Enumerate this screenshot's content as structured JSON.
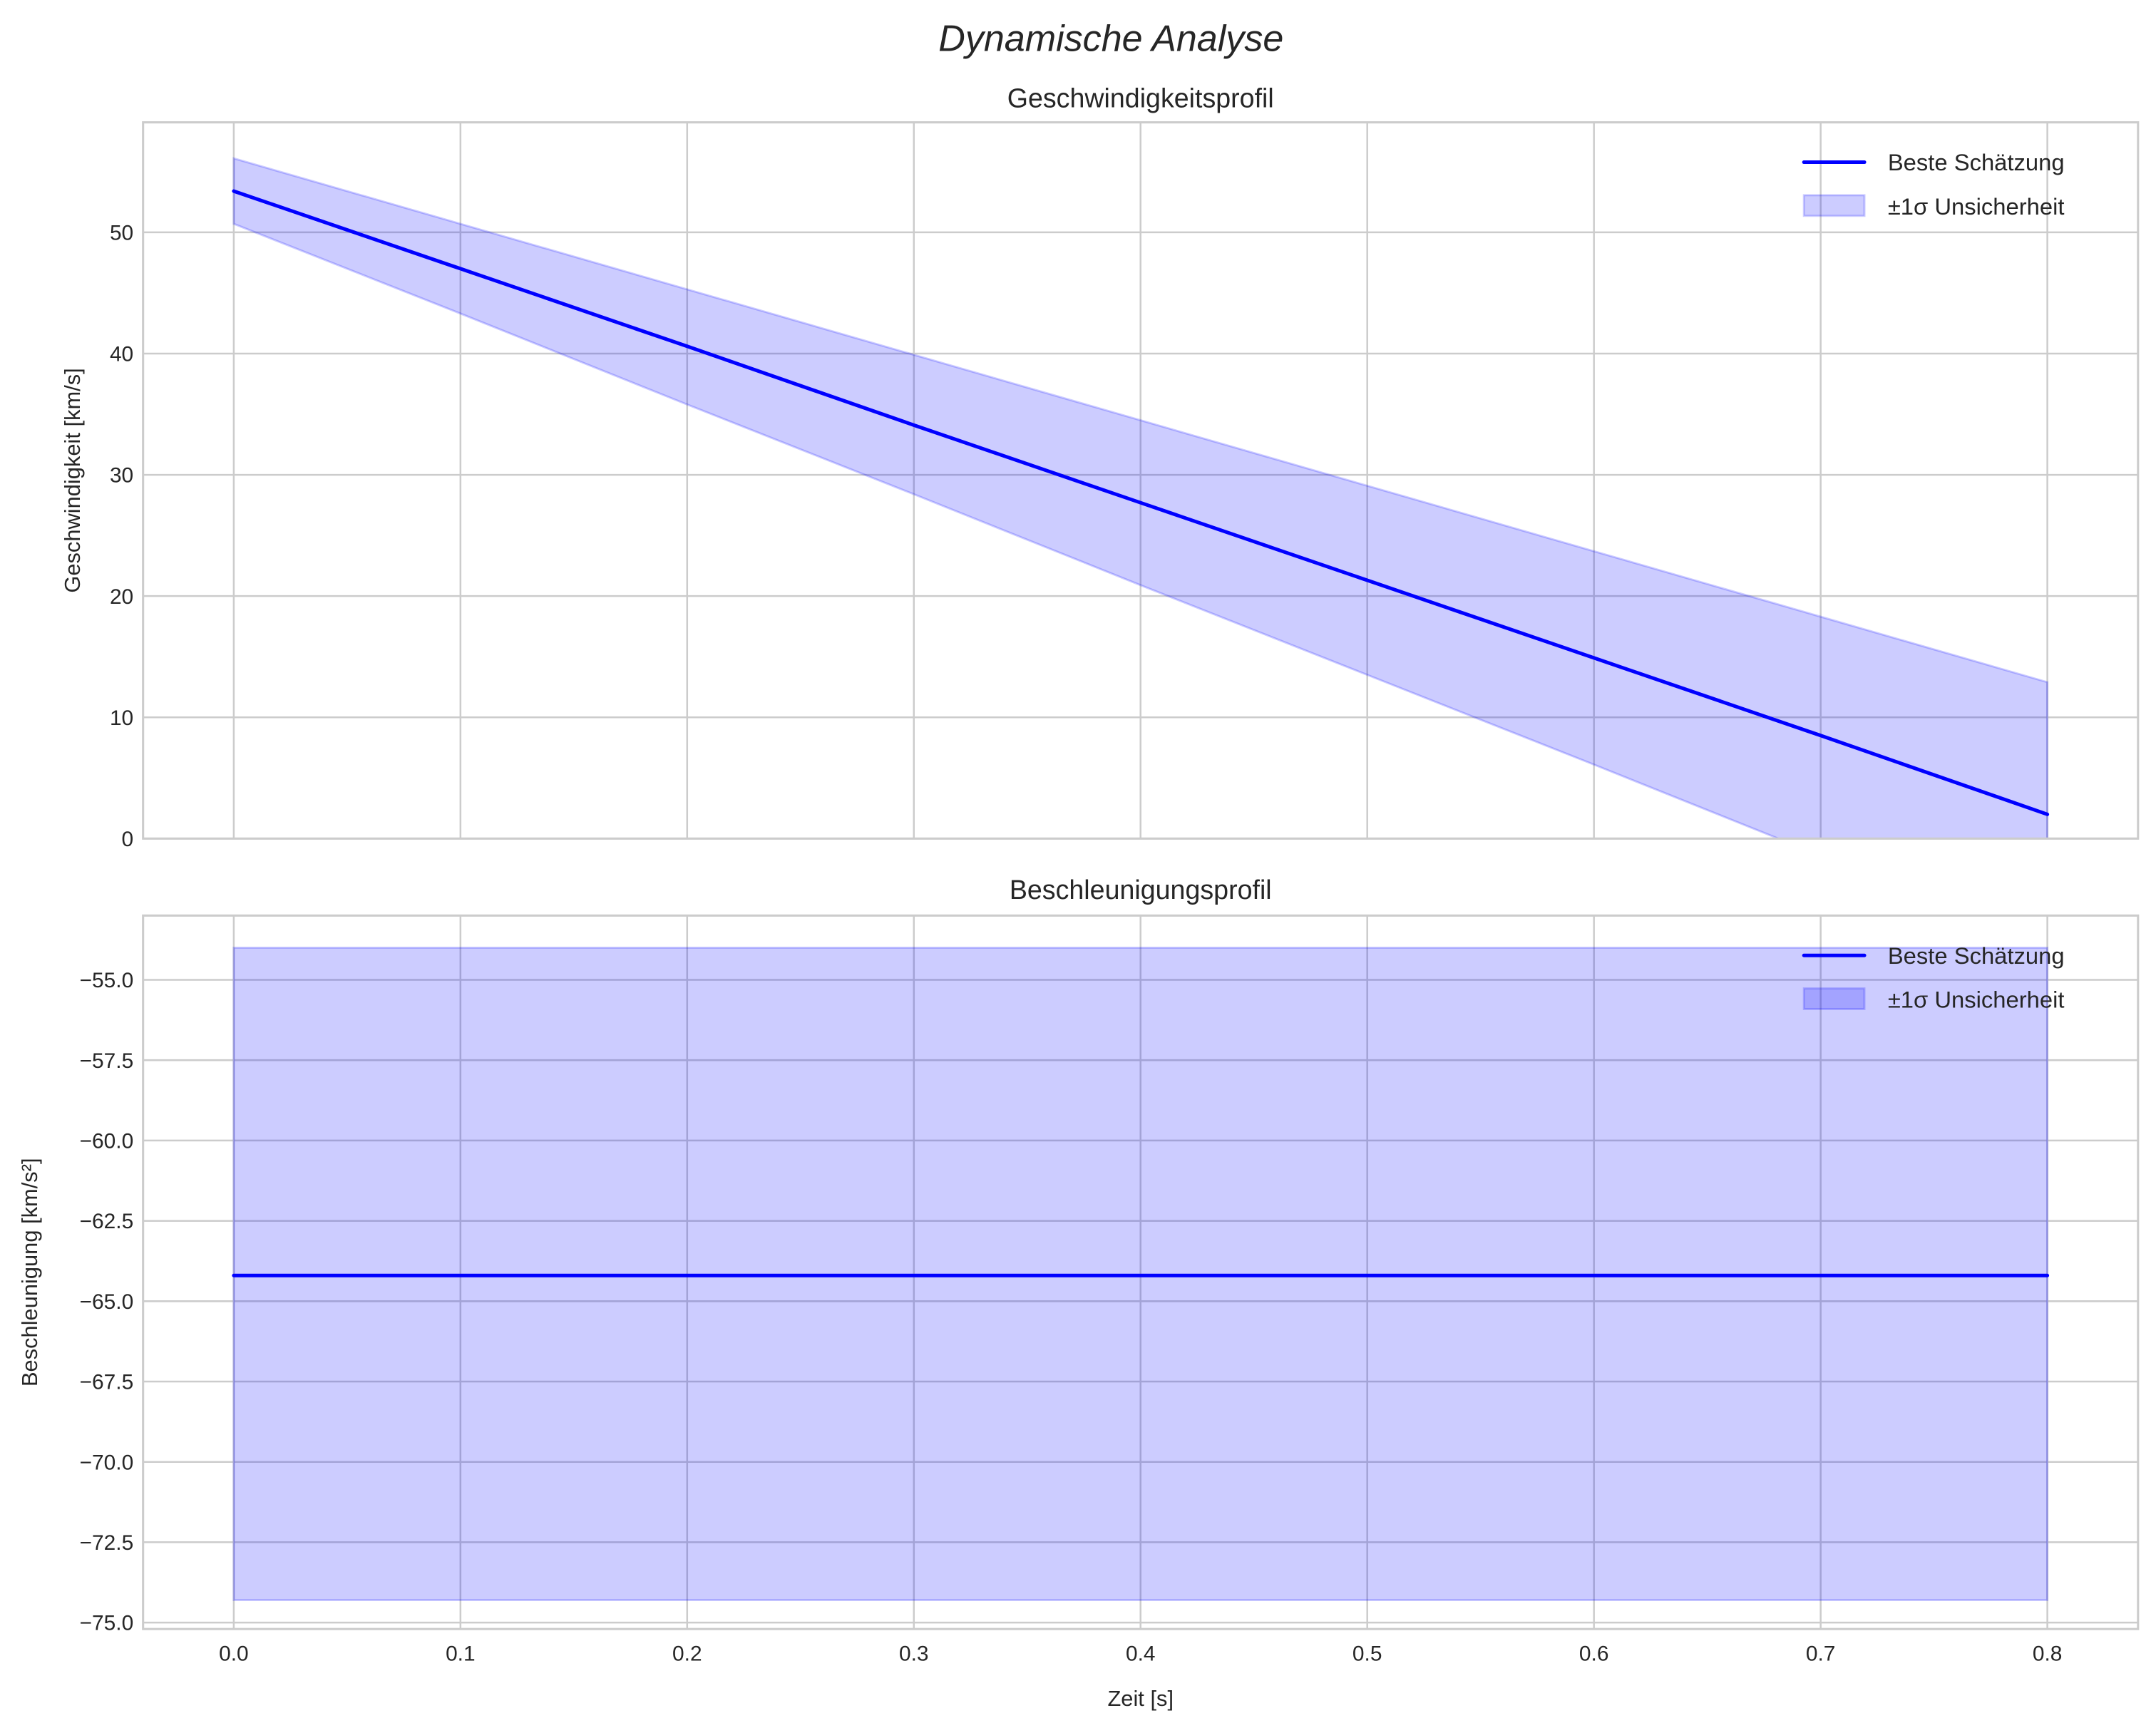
{
  "chart_data": [
    {
      "type": "line",
      "title": "Geschwindigkeitsprofil",
      "xlabel": "",
      "ylabel": "Geschwindigkeit [km/s]",
      "xlim": [
        -0.04,
        0.84
      ],
      "ylim": [
        0,
        59.07
      ],
      "xticks": [],
      "yticks": [
        0,
        10,
        20,
        30,
        40,
        50
      ],
      "ytick_labels": [
        "0",
        "10",
        "20",
        "30",
        "40",
        "50"
      ],
      "grid": true,
      "legend_position": "top-right",
      "x": [
        0.0,
        0.1,
        0.2,
        0.3,
        0.4,
        0.5,
        0.6,
        0.7,
        0.8
      ],
      "series": [
        {
          "name": "Beste Schätzung",
          "kind": "line",
          "color": "#0000ff",
          "values": [
            53.4,
            47.0,
            40.6,
            34.1,
            27.7,
            21.3,
            14.9,
            8.5,
            2.0
          ]
        },
        {
          "name": "±1σ Unsicherheit",
          "kind": "band",
          "color": "#0000ff",
          "alpha": 0.2,
          "lower": [
            50.7,
            43.3,
            35.8,
            28.4,
            20.9,
            13.5,
            6.1,
            -1.4,
            -8.9
          ],
          "upper": [
            56.1,
            50.7,
            45.3,
            39.9,
            34.5,
            29.1,
            23.7,
            18.3,
            12.9
          ]
        }
      ]
    },
    {
      "type": "line",
      "title": "Beschleunigungsprofil",
      "xlabel": "Zeit [s]",
      "ylabel": "Beschleunigung [km/s²]",
      "xlim": [
        -0.04,
        0.84
      ],
      "ylim": [
        -75.2,
        -53.0
      ],
      "xticks": [
        0.0,
        0.1,
        0.2,
        0.3,
        0.4,
        0.5,
        0.6,
        0.7,
        0.8
      ],
      "xtick_labels": [
        "0.0",
        "0.1",
        "0.2",
        "0.3",
        "0.4",
        "0.5",
        "0.6",
        "0.7",
        "0.8"
      ],
      "yticks": [
        -55,
        -57.5,
        -60,
        -62.5,
        -65,
        -67.5,
        -70,
        -72.5,
        -75
      ],
      "ytick_labels": [
        "−55.0",
        "−57.5",
        "−60.0",
        "−62.5",
        "−65.0",
        "−67.5",
        "−70.0",
        "−72.5",
        "−75.0"
      ],
      "grid": true,
      "legend_position": "top-right",
      "x": [
        0.0,
        0.1,
        0.2,
        0.3,
        0.4,
        0.5,
        0.6,
        0.7,
        0.8
      ],
      "series": [
        {
          "name": "Beste Schätzung",
          "kind": "line",
          "color": "#0000ff",
          "values": [
            -64.2,
            -64.2,
            -64.2,
            -64.2,
            -64.2,
            -64.2,
            -64.2,
            -64.2,
            -64.2
          ]
        },
        {
          "name": "±1σ Unsicherheit",
          "kind": "band",
          "color": "#0000ff",
          "alpha": 0.2,
          "lower": [
            -74.3,
            -74.3,
            -74.3,
            -74.3,
            -74.3,
            -74.3,
            -74.3,
            -74.3,
            -74.3
          ],
          "upper": [
            -54.0,
            -54.0,
            -54.0,
            -54.0,
            -54.0,
            -54.0,
            -54.0,
            -54.0,
            -54.0
          ]
        }
      ]
    }
  ],
  "figure": {
    "suptitle": "Dynamische Analyse"
  }
}
